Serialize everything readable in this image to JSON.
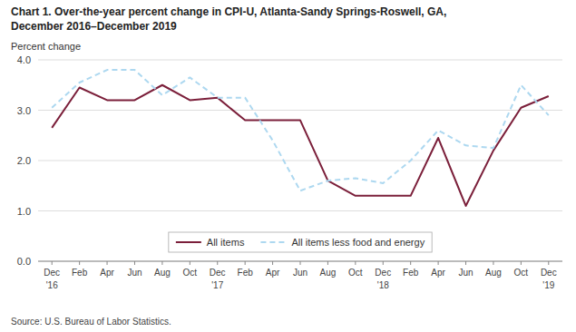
{
  "chart_data": {
    "type": "line",
    "title": "Chart 1. Over-the-year percent change in CPI-U, Atlanta-Sandy Springs-Roswell, GA,",
    "subtitle": "December 2016–December 2019",
    "y_label": "Percent change",
    "source": "Source: U.S. Bureau of Labor Statistics.",
    "categories": [
      "Dec",
      "Feb",
      "Apr",
      "Jun",
      "Aug",
      "Oct",
      "Dec",
      "Feb",
      "Apr",
      "Jun",
      "Aug",
      "Oct",
      "Dec",
      "Feb",
      "Apr",
      "Jun",
      "Aug",
      "Oct",
      "Dec"
    ],
    "category_years": [
      "'16",
      null,
      null,
      null,
      null,
      null,
      "'17",
      null,
      null,
      null,
      null,
      null,
      "'18",
      null,
      null,
      null,
      null,
      null,
      "'19"
    ],
    "series": [
      {
        "name": "All items",
        "color": "#7B1F3A",
        "line_style": "solid",
        "values": [
          2.65,
          3.45,
          3.2,
          3.2,
          3.5,
          3.2,
          3.25,
          2.8,
          2.8,
          2.8,
          1.6,
          1.3,
          1.3,
          1.3,
          2.45,
          1.1,
          2.2,
          3.05,
          3.28
        ]
      },
      {
        "name": "All items less food and energy",
        "color": "#ADD8F0",
        "line_style": "dashed",
        "values": [
          3.05,
          3.55,
          3.8,
          3.8,
          3.3,
          3.65,
          3.25,
          3.25,
          2.4,
          1.4,
          1.6,
          1.65,
          1.55,
          2.0,
          2.6,
          2.3,
          2.25,
          3.5,
          2.9
        ]
      }
    ],
    "ylim": [
      0.0,
      4.0
    ],
    "yticks": [
      {
        "value": 0.0,
        "label": "0.0"
      },
      {
        "value": 1.0,
        "label": "1.0"
      },
      {
        "value": 2.0,
        "label": "2.0"
      },
      {
        "value": 3.0,
        "label": "3.0"
      },
      {
        "value": 4.0,
        "label": "4.0"
      }
    ],
    "grid": true,
    "legend": "bottom"
  }
}
